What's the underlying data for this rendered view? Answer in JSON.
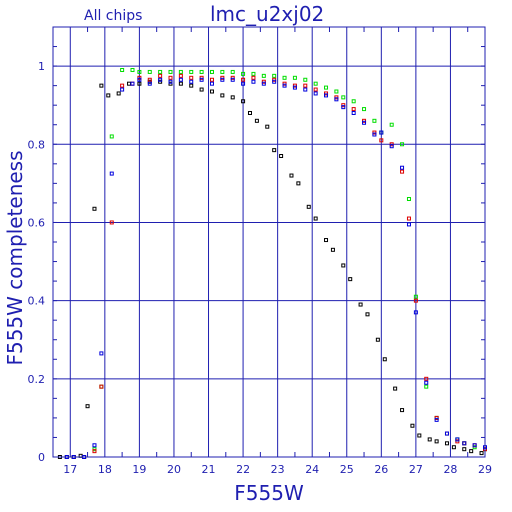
{
  "chart_data": {
    "type": "scatter",
    "title": "lmc_u2xj02",
    "subtitle": "All chips",
    "xlabel": "F555W",
    "ylabel": "F555W completeness",
    "xlim": [
      16.5,
      29.0
    ],
    "ylim": [
      0,
      1.1
    ],
    "x_ticks": [
      17,
      18,
      19,
      20,
      21,
      22,
      23,
      24,
      25,
      26,
      27,
      28,
      29
    ],
    "y_ticks": [
      0,
      0.2,
      0.4,
      0.6,
      0.8,
      1
    ],
    "y_tick_labels": [
      "0",
      "0.2",
      "0.4",
      "0.6",
      "0.8",
      "1"
    ],
    "grid": true,
    "series": [
      {
        "color": "#000000",
        "points": [
          [
            16.7,
            0
          ],
          [
            16.9,
            0
          ],
          [
            17.1,
            0
          ],
          [
            17.3,
            0.003
          ],
          [
            17.5,
            0.13
          ],
          [
            17.7,
            0.635
          ],
          [
            17.9,
            0.95
          ],
          [
            18.1,
            0.925
          ],
          [
            18.4,
            0.93
          ],
          [
            18.7,
            0.955
          ],
          [
            19.0,
            0.955
          ],
          [
            19.3,
            0.96
          ],
          [
            19.6,
            0.96
          ],
          [
            19.9,
            0.955
          ],
          [
            20.2,
            0.955
          ],
          [
            20.5,
            0.95
          ],
          [
            20.8,
            0.94
          ],
          [
            21.1,
            0.935
          ],
          [
            21.4,
            0.925
          ],
          [
            21.7,
            0.92
          ],
          [
            22.0,
            0.91
          ],
          [
            22.2,
            0.88
          ],
          [
            22.4,
            0.86
          ],
          [
            22.7,
            0.845
          ],
          [
            22.9,
            0.785
          ],
          [
            23.1,
            0.77
          ],
          [
            23.4,
            0.72
          ],
          [
            23.6,
            0.7
          ],
          [
            23.9,
            0.64
          ],
          [
            24.1,
            0.61
          ],
          [
            24.4,
            0.555
          ],
          [
            24.6,
            0.53
          ],
          [
            24.9,
            0.49
          ],
          [
            25.1,
            0.455
          ],
          [
            25.4,
            0.39
          ],
          [
            25.6,
            0.365
          ],
          [
            25.9,
            0.3
          ],
          [
            26.1,
            0.25
          ],
          [
            26.4,
            0.175
          ],
          [
            26.6,
            0.12
          ],
          [
            26.9,
            0.08
          ],
          [
            27.1,
            0.055
          ],
          [
            27.4,
            0.045
          ],
          [
            27.6,
            0.04
          ],
          [
            27.9,
            0.035
          ],
          [
            28.1,
            0.025
          ],
          [
            28.4,
            0.02
          ],
          [
            28.6,
            0.015
          ],
          [
            28.9,
            0.01
          ]
        ]
      },
      {
        "color": "#00dd00",
        "points": [
          [
            17.1,
            0
          ],
          [
            17.4,
            0
          ],
          [
            17.7,
            0.02
          ],
          [
            17.9,
            0.18
          ],
          [
            18.2,
            0.82
          ],
          [
            18.5,
            0.99
          ],
          [
            18.8,
            0.99
          ],
          [
            19.0,
            0.985
          ],
          [
            19.3,
            0.985
          ],
          [
            19.6,
            0.985
          ],
          [
            19.9,
            0.985
          ],
          [
            20.2,
            0.985
          ],
          [
            20.5,
            0.985
          ],
          [
            20.8,
            0.985
          ],
          [
            21.1,
            0.985
          ],
          [
            21.4,
            0.985
          ],
          [
            21.7,
            0.985
          ],
          [
            22.0,
            0.98
          ],
          [
            22.3,
            0.98
          ],
          [
            22.6,
            0.975
          ],
          [
            22.9,
            0.975
          ],
          [
            23.2,
            0.97
          ],
          [
            23.5,
            0.97
          ],
          [
            23.8,
            0.965
          ],
          [
            24.1,
            0.955
          ],
          [
            24.4,
            0.945
          ],
          [
            24.7,
            0.935
          ],
          [
            24.9,
            0.92
          ],
          [
            25.2,
            0.91
          ],
          [
            25.5,
            0.89
          ],
          [
            25.8,
            0.86
          ],
          [
            26.0,
            0.83
          ],
          [
            26.3,
            0.85
          ],
          [
            26.6,
            0.8
          ],
          [
            26.8,
            0.66
          ],
          [
            27.0,
            0.41
          ],
          [
            27.3,
            0.18
          ],
          [
            27.6,
            0.1
          ],
          [
            27.9,
            0.06
          ],
          [
            28.2,
            0.045
          ],
          [
            28.4,
            0.035
          ],
          [
            28.7,
            0.025
          ],
          [
            29.0,
            0.02
          ]
        ]
      },
      {
        "color": "#dd0000",
        "points": [
          [
            17.1,
            0
          ],
          [
            17.4,
            0
          ],
          [
            17.7,
            0.015
          ],
          [
            17.9,
            0.18
          ],
          [
            18.2,
            0.6
          ],
          [
            18.5,
            0.95
          ],
          [
            18.8,
            0.955
          ],
          [
            19.0,
            0.97
          ],
          [
            19.3,
            0.965
          ],
          [
            19.6,
            0.975
          ],
          [
            19.9,
            0.97
          ],
          [
            20.2,
            0.975
          ],
          [
            20.5,
            0.97
          ],
          [
            20.8,
            0.97
          ],
          [
            21.1,
            0.965
          ],
          [
            21.4,
            0.97
          ],
          [
            21.7,
            0.97
          ],
          [
            22.0,
            0.965
          ],
          [
            22.3,
            0.97
          ],
          [
            22.6,
            0.96
          ],
          [
            22.9,
            0.965
          ],
          [
            23.2,
            0.955
          ],
          [
            23.5,
            0.95
          ],
          [
            23.8,
            0.95
          ],
          [
            24.1,
            0.94
          ],
          [
            24.4,
            0.93
          ],
          [
            24.7,
            0.92
          ],
          [
            24.9,
            0.9
          ],
          [
            25.2,
            0.89
          ],
          [
            25.5,
            0.86
          ],
          [
            25.8,
            0.83
          ],
          [
            26.0,
            0.81
          ],
          [
            26.3,
            0.8
          ],
          [
            26.6,
            0.73
          ],
          [
            26.8,
            0.61
          ],
          [
            27.0,
            0.4
          ],
          [
            27.3,
            0.2
          ],
          [
            27.6,
            0.1
          ],
          [
            27.9,
            0.06
          ],
          [
            28.2,
            0.04
          ],
          [
            28.4,
            0.035
          ],
          [
            28.7,
            0.03
          ],
          [
            29.0,
            0.02
          ]
        ]
      },
      {
        "color": "#0000dd",
        "points": [
          [
            16.9,
            0
          ],
          [
            17.1,
            0
          ],
          [
            17.4,
            0
          ],
          [
            17.7,
            0.03
          ],
          [
            17.9,
            0.265
          ],
          [
            18.2,
            0.725
          ],
          [
            18.5,
            0.94
          ],
          [
            18.8,
            0.955
          ],
          [
            19.0,
            0.965
          ],
          [
            19.3,
            0.955
          ],
          [
            19.6,
            0.965
          ],
          [
            19.9,
            0.96
          ],
          [
            20.2,
            0.965
          ],
          [
            20.5,
            0.96
          ],
          [
            20.8,
            0.965
          ],
          [
            21.1,
            0.955
          ],
          [
            21.4,
            0.965
          ],
          [
            21.7,
            0.965
          ],
          [
            22.0,
            0.955
          ],
          [
            22.3,
            0.96
          ],
          [
            22.6,
            0.955
          ],
          [
            22.9,
            0.96
          ],
          [
            23.2,
            0.95
          ],
          [
            23.5,
            0.945
          ],
          [
            23.8,
            0.94
          ],
          [
            24.1,
            0.93
          ],
          [
            24.4,
            0.925
          ],
          [
            24.7,
            0.915
          ],
          [
            24.9,
            0.895
          ],
          [
            25.2,
            0.88
          ],
          [
            25.5,
            0.855
          ],
          [
            25.8,
            0.825
          ],
          [
            26.0,
            0.83
          ],
          [
            26.3,
            0.795
          ],
          [
            26.6,
            0.74
          ],
          [
            26.8,
            0.595
          ],
          [
            27.0,
            0.37
          ],
          [
            27.3,
            0.19
          ],
          [
            27.6,
            0.095
          ],
          [
            27.9,
            0.06
          ],
          [
            28.2,
            0.045
          ],
          [
            28.4,
            0.035
          ],
          [
            28.7,
            0.03
          ],
          [
            29.0,
            0.025
          ]
        ]
      }
    ]
  }
}
